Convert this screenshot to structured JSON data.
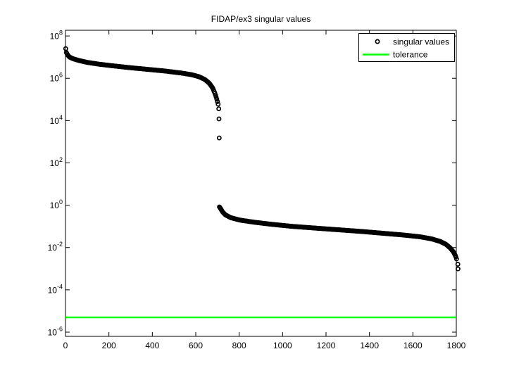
{
  "chart_data": {
    "type": "scatter",
    "title": "FIDAP/ex3 singular values",
    "xlabel": "",
    "ylabel": "",
    "y_scale": "log10",
    "grid": false,
    "xlim": [
      0,
      1800
    ],
    "x_ticks": [
      0,
      200,
      400,
      600,
      800,
      1000,
      1200,
      1400,
      1600,
      1800
    ],
    "y_tick_exponents": [
      8,
      6,
      4,
      2,
      0,
      -2,
      -4,
      -6
    ],
    "y_axis_top_exponent": 8.27,
    "y_axis_bottom_exponent": -6.2,
    "legend": {
      "position": "top-right",
      "items": [
        {
          "label": "singular values",
          "marker": "circle",
          "color": "#000000"
        },
        {
          "label": "tolerance",
          "marker": "line",
          "color": "#00ff00"
        }
      ]
    },
    "tolerance_value": 5e-06,
    "tolerance_log10": -5.3,
    "series": {
      "name": "singular values",
      "marker": "o",
      "color": "#000000",
      "sample_step": 3,
      "upper_branch_log10_anchors": [
        [
          1,
          7.4
        ],
        [
          3,
          7.24
        ],
        [
          10,
          7.1
        ],
        [
          19,
          7.0
        ],
        [
          36,
          6.92
        ],
        [
          62,
          6.84
        ],
        [
          101,
          6.75
        ],
        [
          152,
          6.67
        ],
        [
          217,
          6.59
        ],
        [
          298,
          6.5
        ],
        [
          380,
          6.42
        ],
        [
          461,
          6.34
        ],
        [
          532,
          6.25
        ],
        [
          581,
          6.17
        ],
        [
          616,
          6.07
        ],
        [
          642,
          5.94
        ],
        [
          662,
          5.77
        ],
        [
          678,
          5.54
        ],
        [
          689,
          5.27
        ],
        [
          697,
          5.01
        ],
        [
          704,
          4.74
        ],
        [
          707,
          4.47
        ]
      ],
      "gap_outliers_log10": [
        [
          707,
          4.08
        ],
        [
          708,
          3.18
        ]
      ],
      "lower_branch_log10_anchors": [
        [
          709,
          -0.08
        ],
        [
          714,
          -0.15
        ],
        [
          723,
          -0.31
        ],
        [
          736,
          -0.45
        ],
        [
          759,
          -0.58
        ],
        [
          801,
          -0.7
        ],
        [
          866,
          -0.8
        ],
        [
          947,
          -0.9
        ],
        [
          1044,
          -1.0
        ],
        [
          1148,
          -1.08
        ],
        [
          1255,
          -1.16
        ],
        [
          1362,
          -1.24
        ],
        [
          1466,
          -1.33
        ],
        [
          1557,
          -1.41
        ],
        [
          1631,
          -1.49
        ],
        [
          1686,
          -1.59
        ],
        [
          1725,
          -1.71
        ],
        [
          1751,
          -1.84
        ],
        [
          1771,
          -2.01
        ],
        [
          1787,
          -2.21
        ],
        [
          1797,
          -2.41
        ],
        [
          1802,
          -2.57
        ]
      ],
      "tail_outliers_log10": [
        [
          1807,
          -2.79
        ],
        [
          1808,
          -3.01
        ]
      ]
    }
  }
}
